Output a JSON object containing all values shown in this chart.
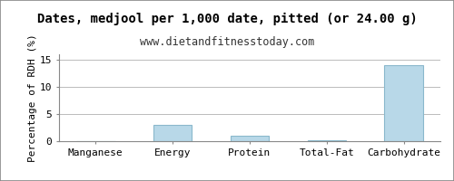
{
  "title": "Dates, medjool per 1,000 date, pitted (or 24.00 g)",
  "subtitle": "www.dietandfitnesstoday.com",
  "categories": [
    "Manganese",
    "Energy",
    "Protein",
    "Total-Fat",
    "Carbohydrate"
  ],
  "values": [
    0.02,
    3.0,
    1.0,
    0.1,
    14.0
  ],
  "bar_color": "#b8d8e8",
  "bar_edge_color": "#8ab8cc",
  "ylabel": "Percentage of RDH (%)",
  "ylim": [
    0,
    16
  ],
  "yticks": [
    0,
    5,
    10,
    15
  ],
  "background_color": "#ffffff",
  "plot_bg_color": "#ffffff",
  "grid_color": "#bbbbbb",
  "title_fontsize": 10,
  "subtitle_fontsize": 8.5,
  "tick_fontsize": 8,
  "ylabel_fontsize": 8,
  "border_color": "#888888"
}
